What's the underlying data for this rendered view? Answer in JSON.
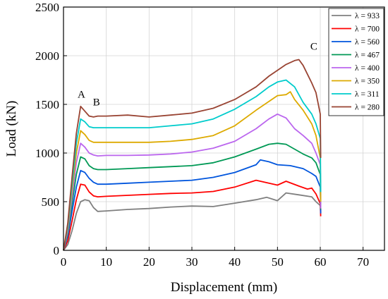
{
  "chart_data": {
    "type": "line",
    "title": "",
    "xlabel": "Displacement (mm)",
    "ylabel": "Load (kN)",
    "xlim": [
      0,
      75
    ],
    "ylim": [
      0,
      2500
    ],
    "xticks": [
      0,
      10,
      20,
      30,
      40,
      50,
      60,
      70
    ],
    "yticks": [
      0,
      500,
      1000,
      1500,
      2000,
      2500
    ],
    "grid": true,
    "legend_position": "top-right",
    "annotations": [
      {
        "text": "A",
        "x": 4.2,
        "y": 1570
      },
      {
        "text": "B",
        "x": 7.7,
        "y": 1490
      },
      {
        "text": "C",
        "x": 58.5,
        "y": 2060
      }
    ],
    "series": [
      {
        "name": "λ = 933",
        "color": "#7f7f7f",
        "x": [
          0,
          1,
          2,
          3,
          4,
          5,
          6,
          7,
          8,
          10,
          15,
          20,
          25,
          30,
          35,
          40,
          45,
          47.5,
          50,
          52,
          55,
          58,
          59,
          60,
          60.1
        ],
        "y": [
          0,
          60,
          200,
          380,
          500,
          520,
          510,
          440,
          400,
          405,
          420,
          430,
          445,
          455,
          450,
          485,
          520,
          545,
          510,
          590,
          570,
          550,
          500,
          460,
          380
        ]
      },
      {
        "name": "λ = 700",
        "color": "#ff0000",
        "x": [
          0,
          1,
          2,
          3,
          4,
          5,
          6,
          7,
          8,
          10,
          15,
          20,
          25,
          30,
          35,
          40,
          45,
          48,
          50,
          52,
          55,
          57,
          58,
          59,
          60,
          60.1
        ],
        "y": [
          0,
          100,
          300,
          520,
          680,
          670,
          600,
          560,
          550,
          555,
          565,
          575,
          585,
          590,
          605,
          650,
          720,
          690,
          670,
          710,
          660,
          630,
          640,
          580,
          480,
          350
        ]
      },
      {
        "name": "λ = 560",
        "color": "#0055dd",
        "x": [
          0,
          1,
          2,
          3,
          4,
          5,
          6,
          7,
          8,
          10,
          15,
          20,
          25,
          30,
          35,
          40,
          45,
          46,
          48,
          50,
          53,
          56,
          58,
          59,
          60,
          60.1
        ],
        "y": [
          0,
          150,
          400,
          650,
          820,
          800,
          740,
          700,
          680,
          680,
          690,
          700,
          710,
          720,
          750,
          800,
          880,
          930,
          910,
          880,
          870,
          840,
          790,
          760,
          650,
          380
        ]
      },
      {
        "name": "λ = 467",
        "color": "#009955",
        "x": [
          0,
          1,
          2,
          3,
          4,
          5,
          6,
          7,
          8,
          10,
          15,
          20,
          25,
          30,
          35,
          40,
          45,
          48,
          50,
          52,
          54,
          56,
          58,
          59,
          60,
          60.1
        ],
        "y": [
          0,
          180,
          480,
          780,
          960,
          940,
          870,
          840,
          830,
          830,
          840,
          850,
          860,
          870,
          900,
          960,
          1040,
          1090,
          1100,
          1090,
          1040,
          990,
          950,
          900,
          780,
          420
        ]
      },
      {
        "name": "λ = 400",
        "color": "#bb66ee",
        "x": [
          0,
          1,
          2,
          3,
          4,
          5,
          6,
          7,
          8,
          10,
          15,
          20,
          25,
          30,
          35,
          40,
          45,
          48,
          50,
          52,
          54,
          56,
          58,
          59,
          60,
          60.1
        ],
        "y": [
          0,
          200,
          550,
          900,
          1100,
          1060,
          1000,
          980,
          970,
          975,
          975,
          980,
          990,
          1010,
          1050,
          1120,
          1250,
          1350,
          1400,
          1360,
          1250,
          1180,
          1100,
          1000,
          880,
          430
        ]
      },
      {
        "name": "λ = 350",
        "color": "#ddaa00",
        "x": [
          0,
          1,
          2,
          3,
          4,
          5,
          6,
          7,
          8,
          10,
          15,
          20,
          25,
          30,
          35,
          40,
          45,
          50,
          52,
          53,
          54,
          56,
          58,
          59,
          60,
          60.1
        ],
        "y": [
          0,
          230,
          620,
          1000,
          1230,
          1190,
          1130,
          1110,
          1110,
          1110,
          1110,
          1110,
          1120,
          1140,
          1180,
          1280,
          1440,
          1590,
          1600,
          1630,
          1550,
          1440,
          1300,
          1180,
          950,
          500
        ]
      },
      {
        "name": "λ = 311",
        "color": "#00cccc",
        "x": [
          0,
          1,
          2,
          3,
          4,
          5,
          6,
          7,
          8,
          10,
          15,
          20,
          25,
          30,
          35,
          40,
          45,
          48,
          50,
          52,
          54,
          56,
          58,
          59,
          60,
          60.1
        ],
        "y": [
          0,
          250,
          680,
          1100,
          1350,
          1320,
          1270,
          1260,
          1260,
          1260,
          1260,
          1260,
          1280,
          1300,
          1350,
          1450,
          1580,
          1680,
          1730,
          1750,
          1680,
          1520,
          1400,
          1300,
          1150,
          600
        ]
      },
      {
        "name": "λ = 280",
        "color": "#994433",
        "x": [
          0,
          1,
          2,
          3,
          4,
          5,
          6,
          7,
          8,
          10,
          15,
          20,
          25,
          30,
          35,
          40,
          45,
          48,
          50,
          52,
          54,
          55,
          56,
          58,
          59,
          60,
          60.1
        ],
        "y": [
          0,
          280,
          750,
          1200,
          1480,
          1430,
          1380,
          1370,
          1380,
          1380,
          1390,
          1370,
          1390,
          1410,
          1460,
          1550,
          1680,
          1790,
          1850,
          1910,
          1950,
          1960,
          1900,
          1720,
          1620,
          1400,
          950
        ]
      }
    ]
  }
}
